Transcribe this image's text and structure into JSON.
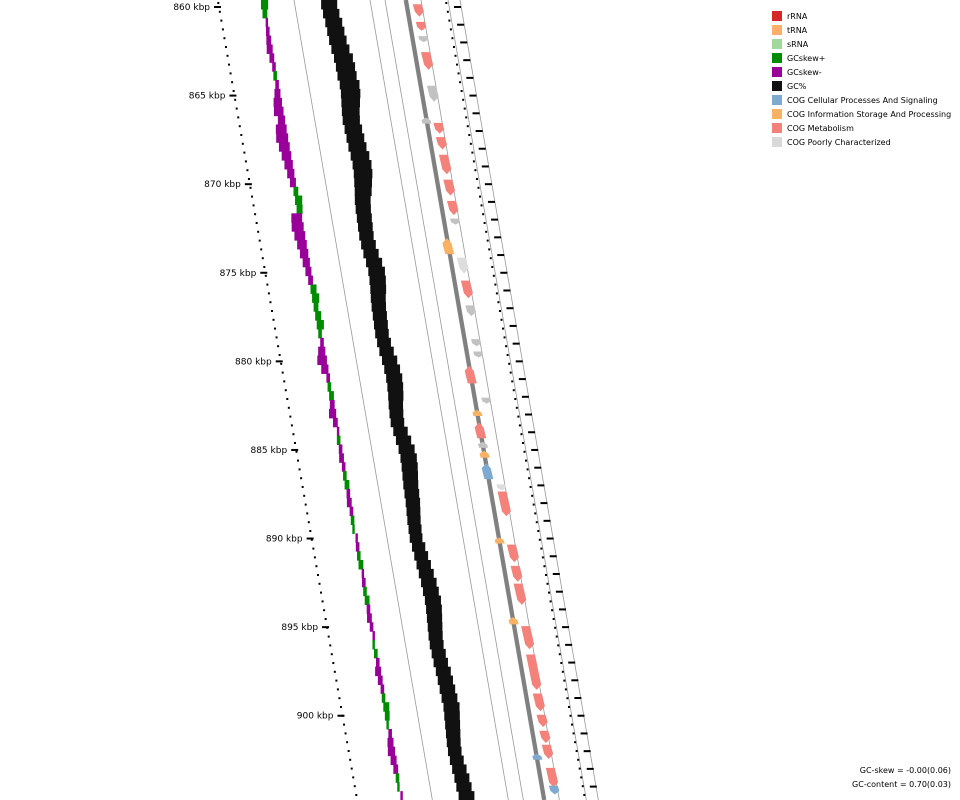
{
  "genome_map": {
    "range_kbp": [
      859.5,
      904
    ],
    "ticks": [
      {
        "kbp": 860,
        "label": "860 kbp"
      },
      {
        "kbp": 865,
        "label": "865 kbp"
      },
      {
        "kbp": 870,
        "label": "870 kbp"
      },
      {
        "kbp": 875,
        "label": "875 kbp"
      },
      {
        "kbp": 880,
        "label": "880 kbp"
      },
      {
        "kbp": 885,
        "label": "885 kbp"
      },
      {
        "kbp": 890,
        "label": "890 kbp"
      },
      {
        "kbp": 895,
        "label": "895 kbp"
      },
      {
        "kbp": 900,
        "label": "900 kbp"
      }
    ],
    "features": [
      {
        "kbp": 859.9,
        "len": 0.7,
        "strand": "fwd",
        "cog": "metabolism"
      },
      {
        "kbp": 860.9,
        "len": 0.5,
        "strand": "fwd",
        "cog": "metabolism"
      },
      {
        "kbp": 861.7,
        "len": 0.3,
        "strand": "fwd",
        "cog": "poorly"
      },
      {
        "kbp": 862.6,
        "len": 1.0,
        "strand": "fwd",
        "cog": "metabolism"
      },
      {
        "kbp": 864.5,
        "len": 0.9,
        "strand": "fwd",
        "cog": "poorly"
      },
      {
        "kbp": 866.3,
        "len": 0.2,
        "strand": "rev",
        "cog": "poorly"
      },
      {
        "kbp": 866.6,
        "len": 0.6,
        "strand": "fwd",
        "cog": "metabolism"
      },
      {
        "kbp": 867.4,
        "len": 0.7,
        "strand": "fwd",
        "cog": "metabolism"
      },
      {
        "kbp": 868.4,
        "len": 1.1,
        "strand": "fwd",
        "cog": "metabolism"
      },
      {
        "kbp": 869.8,
        "len": 0.9,
        "strand": "fwd",
        "cog": "metabolism"
      },
      {
        "kbp": 871.0,
        "len": 0.8,
        "strand": "fwd",
        "cog": "metabolism"
      },
      {
        "kbp": 872.0,
        "len": 0.2,
        "strand": "fwd",
        "cog": "poorly"
      },
      {
        "kbp": 873.1,
        "len": 0.9,
        "strand": "rev",
        "cog": "information"
      },
      {
        "kbp": 874.2,
        "len": 0.9,
        "strand": "fwd",
        "cog": "poorly_light"
      },
      {
        "kbp": 875.5,
        "len": 1.0,
        "strand": "fwd",
        "cog": "metabolism"
      },
      {
        "kbp": 876.9,
        "len": 0.6,
        "strand": "fwd",
        "cog": "poorly"
      },
      {
        "kbp": 878.8,
        "len": 0.4,
        "strand": "fwd",
        "cog": "poorly"
      },
      {
        "kbp": 879.5,
        "len": 0.2,
        "strand": "fwd",
        "cog": "poorly"
      },
      {
        "kbp": 880.3,
        "len": 1.0,
        "strand": "rev",
        "cog": "metabolism"
      },
      {
        "kbp": 882.1,
        "len": 0.2,
        "strand": "fwd",
        "cog": "poorly"
      },
      {
        "kbp": 882.8,
        "len": 0.3,
        "strand": "rev",
        "cog": "information"
      },
      {
        "kbp": 883.5,
        "len": 0.9,
        "strand": "rev",
        "cog": "metabolism"
      },
      {
        "kbp": 884.6,
        "len": 0.2,
        "strand": "rev",
        "cog": "poorly"
      },
      {
        "kbp": 885.1,
        "len": 0.4,
        "strand": "rev",
        "cog": "information"
      },
      {
        "kbp": 885.8,
        "len": 0.9,
        "strand": "rev",
        "cog": "cellular"
      },
      {
        "kbp": 887.0,
        "len": 0.2,
        "strand": "fwd",
        "cog": "poorly_light"
      },
      {
        "kbp": 887.4,
        "len": 1.4,
        "strand": "fwd",
        "cog": "metabolism"
      },
      {
        "kbp": 890.0,
        "len": 0.3,
        "strand": "rev",
        "cog": "information"
      },
      {
        "kbp": 890.4,
        "len": 1.0,
        "strand": "fwd",
        "cog": "metabolism"
      },
      {
        "kbp": 891.6,
        "len": 0.9,
        "strand": "fwd",
        "cog": "metabolism"
      },
      {
        "kbp": 892.6,
        "len": 1.2,
        "strand": "fwd",
        "cog": "metabolism"
      },
      {
        "kbp": 894.5,
        "len": 0.4,
        "strand": "rev",
        "cog": "information"
      },
      {
        "kbp": 895.0,
        "len": 1.3,
        "strand": "fwd",
        "cog": "metabolism"
      },
      {
        "kbp": 896.6,
        "len": 2.0,
        "strand": "fwd",
        "cog": "metabolism"
      },
      {
        "kbp": 898.8,
        "len": 1.0,
        "strand": "fwd",
        "cog": "metabolism"
      },
      {
        "kbp": 900.0,
        "len": 0.7,
        "strand": "fwd",
        "cog": "metabolism"
      },
      {
        "kbp": 900.9,
        "len": 0.7,
        "strand": "fwd",
        "cog": "metabolism"
      },
      {
        "kbp": 901.7,
        "len": 0.8,
        "strand": "fwd",
        "cog": "metabolism"
      },
      {
        "kbp": 902.2,
        "len": 0.3,
        "strand": "rev",
        "cog": "cellular"
      },
      {
        "kbp": 903.0,
        "len": 1.1,
        "strand": "fwd",
        "cog": "metabolism"
      },
      {
        "kbp": 904.0,
        "len": 0.5,
        "strand": "fwd",
        "cog": "cellular"
      }
    ],
    "gc_content": [
      0.72,
      0.74,
      0.78,
      0.8,
      0.82,
      0.86,
      0.92,
      0.94,
      0.94,
      0.98,
      0.96,
      0.9,
      0.84,
      0.8,
      0.82,
      0.84,
      0.86,
      0.9,
      0.92,
      0.9,
      0.84,
      0.78,
      0.7,
      0.66,
      0.64,
      0.62,
      0.6,
      0.62,
      0.66,
      0.72,
      0.76,
      0.74,
      0.7,
      0.64,
      0.6,
      0.58,
      0.56,
      0.54,
      0.56,
      0.6,
      0.66,
      0.7,
      0.72,
      0.7,
      0.66,
      0.6,
      0.56,
      0.54,
      0.6,
      0.66,
      0.72,
      0.74,
      0.72,
      0.68,
      0.64,
      0.62,
      0.6,
      0.56,
      0.52,
      0.5,
      0.48,
      0.52,
      0.56,
      0.6,
      0.64,
      0.68,
      0.7,
      0.72,
      0.7,
      0.66,
      0.62,
      0.58,
      0.56,
      0.58,
      0.6,
      0.64,
      0.66,
      0.68,
      0.7,
      0.72,
      0.68,
      0.64,
      0.6,
      0.56,
      0.54,
      0.56,
      0.6,
      0.64,
      0.66,
      0.7
    ],
    "gc_skew": [
      0.6,
      0.4,
      -0.2,
      -0.3,
      -0.4,
      -0.5,
      -0.4,
      -0.3,
      0.3,
      -0.3,
      -0.5,
      -0.7,
      -0.8,
      -0.6,
      -0.9,
      -1.0,
      -0.9,
      -0.8,
      -0.7,
      -0.6,
      -0.5,
      0.4,
      0.6,
      0.5,
      -0.9,
      -1.0,
      -0.9,
      -0.8,
      -0.7,
      -0.6,
      -0.5,
      -0.4,
      0.5,
      0.6,
      0.4,
      0.5,
      0.6,
      0.3,
      -0.3,
      -0.6,
      -0.8,
      -0.6,
      -0.3,
      0.3,
      0.4,
      -0.4,
      -0.6,
      -0.4,
      -0.2,
      0.3,
      -0.3,
      -0.4,
      -0.3,
      0.3,
      0.4,
      -0.3,
      -0.4,
      -0.3,
      0.3,
      0.2,
      -0.2,
      -0.3,
      0.3,
      0.4,
      -0.2,
      -0.3,
      0.3,
      0.4,
      -0.3,
      -0.4,
      -0.3,
      -0.2,
      0.2,
      0.3,
      -0.3,
      -0.5,
      -0.4,
      -0.3,
      0.3,
      0.5,
      0.4,
      0.2,
      -0.3,
      -0.5,
      -0.6,
      -0.5,
      -0.4,
      0.3,
      0.2,
      -0.2
    ]
  },
  "legend": {
    "items": [
      {
        "name": "rRNA-swatch",
        "label": "rRNA",
        "color": "#d62728"
      },
      {
        "name": "trna-swatch",
        "label": "tRNA",
        "color": "#fdae6b"
      },
      {
        "name": "srna-swatch",
        "label": "sRNA",
        "color": "#a1d99b"
      },
      {
        "name": "gcskew-plus-swatch",
        "label": "GCskew+",
        "color": "#008c00"
      },
      {
        "name": "gcskew-minus-swatch",
        "label": "GCskew-",
        "color": "#990099"
      },
      {
        "name": "gc-percent-swatch",
        "label": "GC%",
        "color": "#111111"
      },
      {
        "name": "cog-cellular-swatch",
        "label": "COG Cellular Processes And Signaling",
        "color": "#7eaad1"
      },
      {
        "name": "cog-information-swatch",
        "label": "COG Information Storage And Processing",
        "color": "#f9b264"
      },
      {
        "name": "cog-metabolism-swatch",
        "label": "COG Metabolism",
        "color": "#f4827a"
      },
      {
        "name": "cog-poorly-swatch",
        "label": "COG Poorly Characterized",
        "color": "#d9d9d9"
      }
    ]
  },
  "colors": {
    "metabolism": "#f4827a",
    "information": "#f9b264",
    "cellular": "#7eaad1",
    "poorly": "#c2c2c2",
    "poorly_light": "#dddddd",
    "gc": "#111111",
    "skew_plus": "#008c00",
    "skew_minus": "#990099",
    "backbone": "#808080",
    "guide": "#999999"
  },
  "stats": {
    "gc_skew_text": "GC-skew = -0.00(0.06)",
    "gc_content_text": "GC-content = 0.70(0.03)"
  }
}
